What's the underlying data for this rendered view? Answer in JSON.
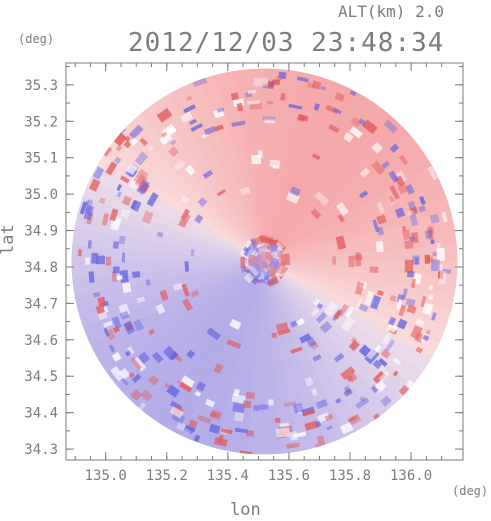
{
  "header": {
    "altitude": "ALT(km) 2.0",
    "datetime": "2012/12/03 23:48:34"
  },
  "axes": {
    "xlabel": "lon",
    "ylabel": "lat",
    "xunit": "(deg)",
    "yunit": "(deg)",
    "xticks": [
      "135.0",
      "135.2",
      "135.4",
      "135.6",
      "135.8",
      "136.0"
    ],
    "yticks": [
      "35.3",
      "35.2",
      "35.1",
      "35.0",
      "34.9",
      "34.8",
      "34.7",
      "34.6",
      "34.5",
      "34.4",
      "34.3"
    ],
    "xlim": [
      134.87,
      136.17
    ],
    "ylim": [
      34.27,
      35.36
    ]
  },
  "radar": {
    "center_lon": 135.52,
    "center_lat": 34.815,
    "radius_deg_lat": 0.53,
    "colors": {
      "positive": "#f28c8c",
      "negative": "#8c8cf2",
      "neutral": "#ffffff",
      "axis": "#7a7a7a"
    }
  }
}
